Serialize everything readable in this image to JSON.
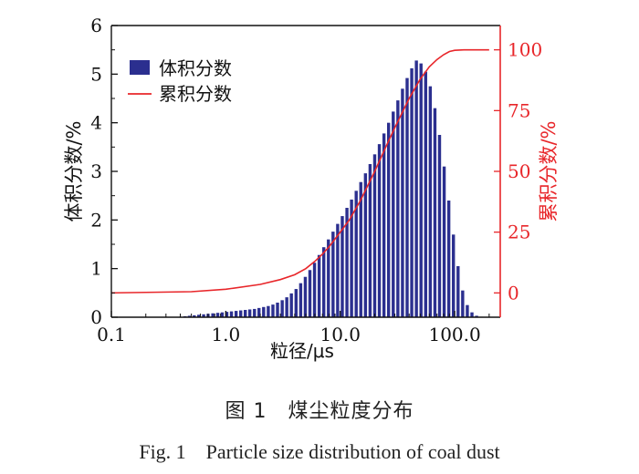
{
  "chart_data": {
    "type": "bar",
    "xscale": "log",
    "xlim": [
      0.1,
      250
    ],
    "xticks": [
      "0.1",
      "1.0",
      "10.0",
      "100.0"
    ],
    "xlabel": "粒径/μs",
    "y_left": {
      "label": "体积分数/%",
      "lim": [
        0,
        6
      ],
      "ticks": [
        "0",
        "1",
        "2",
        "3",
        "4",
        "5",
        "6"
      ]
    },
    "y_right": {
      "label": "累积分数/%",
      "lim": [
        -10,
        110
      ],
      "ticks": [
        "0",
        "25",
        "50",
        "75",
        "100"
      ],
      "color": "#e8262a"
    },
    "legend": {
      "position": "top-left",
      "items": [
        "体积分数",
        "累积分数"
      ]
    },
    "colors": {
      "bars": "#2b2f8f",
      "line": "#e8262a",
      "axis": "#111111"
    },
    "series": [
      {
        "name": "体积分数",
        "axis": "left",
        "kind": "bar",
        "x": [
          0.4,
          0.44,
          0.48,
          0.53,
          0.58,
          0.64,
          0.7,
          0.77,
          0.85,
          0.93,
          1.02,
          1.12,
          1.23,
          1.35,
          1.48,
          1.62,
          1.78,
          1.95,
          2.14,
          2.35,
          2.58,
          2.83,
          3.11,
          3.41,
          3.74,
          4.11,
          4.51,
          4.95,
          5.43,
          5.96,
          6.54,
          7.18,
          7.88,
          8.65,
          9.49,
          10.42,
          11.44,
          12.55,
          13.78,
          15.12,
          16.6,
          18.22,
          20,
          21.95,
          24.1,
          26.45,
          29.03,
          31.87,
          34.98,
          38.4,
          42.14,
          46.26,
          50.78,
          55.73,
          61.17,
          67.15,
          73.7,
          80.9,
          88.8,
          97.47,
          107,
          117.4,
          128.9,
          141.5,
          155.3,
          170.5
        ],
        "values": [
          0.01,
          0.02,
          0.03,
          0.04,
          0.05,
          0.06,
          0.07,
          0.08,
          0.09,
          0.1,
          0.11,
          0.12,
          0.13,
          0.14,
          0.15,
          0.16,
          0.17,
          0.19,
          0.21,
          0.23,
          0.26,
          0.3,
          0.35,
          0.41,
          0.49,
          0.58,
          0.7,
          0.83,
          0.97,
          1.12,
          1.28,
          1.44,
          1.6,
          1.76,
          1.92,
          2.08,
          2.25,
          2.42,
          2.6,
          2.78,
          2.96,
          3.15,
          3.35,
          3.56,
          3.78,
          4,
          4.23,
          4.46,
          4.7,
          4.92,
          5.12,
          5.28,
          5.22,
          5.05,
          4.75,
          4.3,
          3.75,
          3.1,
          2.4,
          1.7,
          1.05,
          0.55,
          0.25,
          0.1,
          0.03,
          0.01
        ]
      },
      {
        "name": "累积分数",
        "axis": "right",
        "kind": "line",
        "x": [
          0.1,
          0.5,
          1,
          2,
          3,
          4,
          5,
          6,
          7,
          8,
          10,
          12,
          15,
          20,
          25,
          30,
          40,
          50,
          60,
          70,
          80,
          90,
          100,
          120,
          150,
          200
        ],
        "values": [
          0,
          0.5,
          1.5,
          3.5,
          5.5,
          7.5,
          10,
          13,
          16,
          19,
          25,
          30,
          38,
          50,
          60,
          68,
          80,
          88,
          93,
          96,
          98,
          99.3,
          99.8,
          100,
          100,
          100
        ]
      }
    ]
  },
  "caption": {
    "cn": "图 1　煤尘粒度分布",
    "en": "Fig. 1　Particle size distribution of coal dust"
  }
}
